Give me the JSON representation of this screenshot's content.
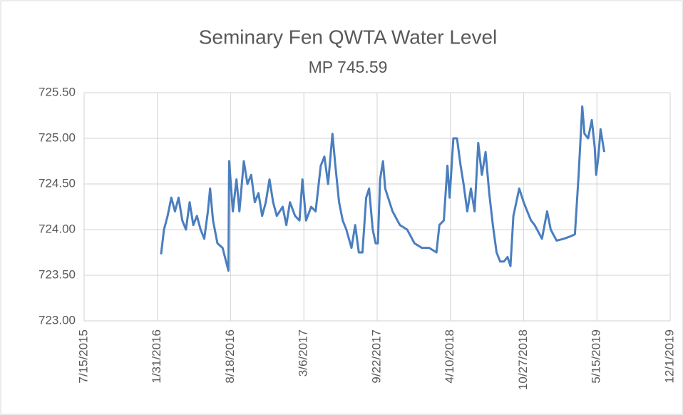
{
  "chart_data": {
    "type": "line",
    "title": "Seminary Fen QWTA Water Level",
    "subtitle": "MP 745.59",
    "x": [
      "2/10/2016",
      "2/18/2016",
      "2/28/2016",
      "3/9/2016",
      "3/19/2016",
      "3/29/2016",
      "4/8/2016",
      "4/18/2016",
      "4/28/2016",
      "5/8/2016",
      "5/18/2016",
      "5/28/2016",
      "6/7/2016",
      "6/17/2016",
      "6/23/2016",
      "7/1/2016",
      "7/13/2016",
      "7/27/2016",
      "8/12/2016",
      "8/14/2016",
      "8/24/2016",
      "9/3/2016",
      "9/11/2016",
      "9/23/2016",
      "10/3/2016",
      "10/13/2016",
      "10/23/2016",
      "11/2/2016",
      "11/12/2016",
      "11/22/2016",
      "12/2/2016",
      "12/12/2016",
      "12/22/2016",
      "1/7/2017",
      "1/17/2017",
      "1/27/2017",
      "2/10/2017",
      "2/22/2017",
      "3/2/2017",
      "3/12/2017",
      "3/26/2017",
      "4/7/2017",
      "4/21/2017",
      "5/1/2017",
      "5/11/2017",
      "5/23/2017",
      "5/31/2017",
      "6/10/2017",
      "6/20/2017",
      "6/30/2017",
      "7/14/2017",
      "7/24/2017",
      "8/3/2017",
      "8/13/2017",
      "8/23/2017",
      "8/31/2017",
      "9/10/2017",
      "9/18/2017",
      "9/24/2017",
      "9/30/2017",
      "10/8/2017",
      "10/14/2017",
      "11/3/2017",
      "11/23/2017",
      "12/13/2017",
      "1/2/2018",
      "1/22/2018",
      "2/11/2018",
      "3/3/2018",
      "3/11/2018",
      "3/23/2018",
      "4/2/2018",
      "4/8/2018",
      "4/18/2018",
      "4/28/2018",
      "5/8/2018",
      "5/16/2018",
      "5/26/2018",
      "6/5/2018",
      "6/15/2018",
      "6/25/2018",
      "7/5/2018",
      "7/15/2018",
      "7/25/2018",
      "8/4/2018",
      "8/14/2018",
      "8/24/2018",
      "9/3/2018",
      "9/13/2018",
      "9/21/2018",
      "9/29/2018",
      "10/7/2018",
      "10/15/2018",
      "10/27/2018",
      "11/6/2018",
      "11/16/2018",
      "11/26/2018",
      "12/16/2018",
      "12/30/2018",
      "1/9/2019",
      "1/25/2019",
      "2/14/2019",
      "3/6/2019",
      "3/16/2019",
      "3/26/2019",
      "4/5/2019",
      "4/11/2019",
      "4/21/2019",
      "5/1/2019",
      "5/9/2019",
      "5/13/2019",
      "5/19/2019",
      "5/25/2019",
      "6/4/2019"
    ],
    "series": [
      {
        "name": "Water Level",
        "color": "#4a7ebf",
        "values": [
          723.73,
          724.0,
          724.15,
          724.35,
          724.2,
          724.35,
          724.1,
          724.0,
          724.3,
          724.05,
          724.15,
          724.0,
          723.9,
          724.2,
          724.45,
          724.1,
          723.85,
          723.8,
          723.55,
          724.75,
          724.2,
          724.55,
          724.2,
          724.75,
          724.5,
          724.6,
          724.3,
          724.4,
          724.15,
          724.3,
          724.55,
          724.3,
          724.15,
          724.25,
          724.05,
          724.3,
          724.15,
          724.1,
          724.55,
          724.1,
          724.25,
          724.2,
          724.7,
          724.8,
          724.5,
          725.05,
          724.7,
          724.3,
          724.1,
          724.0,
          723.8,
          724.05,
          723.75,
          723.75,
          724.35,
          724.45,
          724.0,
          723.85,
          723.85,
          724.55,
          724.75,
          724.45,
          724.2,
          724.05,
          724.0,
          723.85,
          723.8,
          723.8,
          723.75,
          724.05,
          724.1,
          724.7,
          724.35,
          725.0,
          725.0,
          724.7,
          724.5,
          724.2,
          724.45,
          724.2,
          724.95,
          724.6,
          724.85,
          724.4,
          724.05,
          723.75,
          723.65,
          723.65,
          723.7,
          723.6,
          724.15,
          724.3,
          724.45,
          724.3,
          724.2,
          724.1,
          724.05,
          723.9,
          724.2,
          724.0,
          723.88,
          723.9,
          723.93,
          723.95,
          724.6,
          725.35,
          725.05,
          725.0,
          725.2,
          724.9,
          724.6,
          724.8,
          725.1,
          724.85
        ]
      }
    ],
    "xlim": [
      "7/15/2015",
      "12/1/2019"
    ],
    "xticks": [
      "7/15/2015",
      "1/31/2016",
      "8/18/2016",
      "3/6/2017",
      "9/22/2017",
      "4/10/2018",
      "10/27/2018",
      "5/15/2019",
      "12/1/2019"
    ],
    "ylim": [
      723,
      725.5
    ],
    "yticks": [
      {
        "value": 723,
        "label": "723.00"
      },
      {
        "value": 723.5,
        "label": "723.50"
      },
      {
        "value": 724,
        "label": "724.00"
      },
      {
        "value": 724.5,
        "label": "724.50"
      },
      {
        "value": 725,
        "label": "725.00"
      },
      {
        "value": 725.5,
        "label": "725.50"
      }
    ],
    "grid": true
  }
}
